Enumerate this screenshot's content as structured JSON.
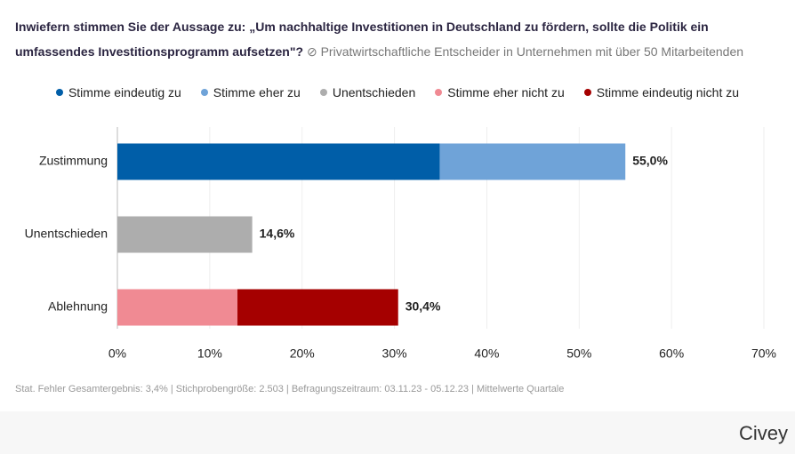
{
  "chart_data": {
    "type": "stacked-barh",
    "title": "Inwiefern stimmen Sie der Aussage zu: „Um nachhaltige Investitionen in Deutschland zu fördern, sollte die Politik ein umfassendes Investitionsprogramm aufsetzen\"?",
    "subtitle": "Privatwirtschaftliche Entscheider in Unternehmen mit über 50 Mitarbeitenden",
    "categories": [
      "Zustimmung",
      "Unentschieden",
      "Ablehnung"
    ],
    "series": [
      {
        "name": "Stimme eindeutig zu",
        "color": "#005ea8",
        "values": [
          34.9,
          null,
          null
        ]
      },
      {
        "name": "Stimme eher zu",
        "color": "#6fa3d8",
        "values": [
          20.1,
          null,
          null
        ]
      },
      {
        "name": "Unentschieden",
        "color": "#adadad",
        "values": [
          null,
          14.6,
          null
        ]
      },
      {
        "name": "Stimme eher nicht zu",
        "color": "#f08a93",
        "values": [
          null,
          null,
          13.0
        ]
      },
      {
        "name": "Stimme eindeutig nicht zu",
        "color": "#a50000",
        "values": [
          null,
          null,
          17.4
        ]
      }
    ],
    "totals": [
      55.0,
      14.6,
      30.4
    ],
    "total_labels": [
      "55,0%",
      "14,6%",
      "30,4%"
    ],
    "xlim": [
      0,
      70
    ],
    "xticks": [
      {
        "value": 0,
        "label": "0%"
      },
      {
        "value": 10,
        "label": "10%"
      },
      {
        "value": 20,
        "label": "20%"
      },
      {
        "value": 30,
        "label": "30%"
      },
      {
        "value": 40,
        "label": "40%"
      },
      {
        "value": 50,
        "label": "50%"
      },
      {
        "value": 60,
        "label": "60%"
      },
      {
        "value": 70,
        "label": "70%"
      }
    ],
    "grid": true,
    "footnote": "Stat. Fehler Gesamtergebnis: 3,4% | Stichprobengröße: 2.503 | Befragungszeitraum: 03.11.23 - 05.12.23 | Mittelwerte Quartale",
    "brand": "Civey"
  }
}
